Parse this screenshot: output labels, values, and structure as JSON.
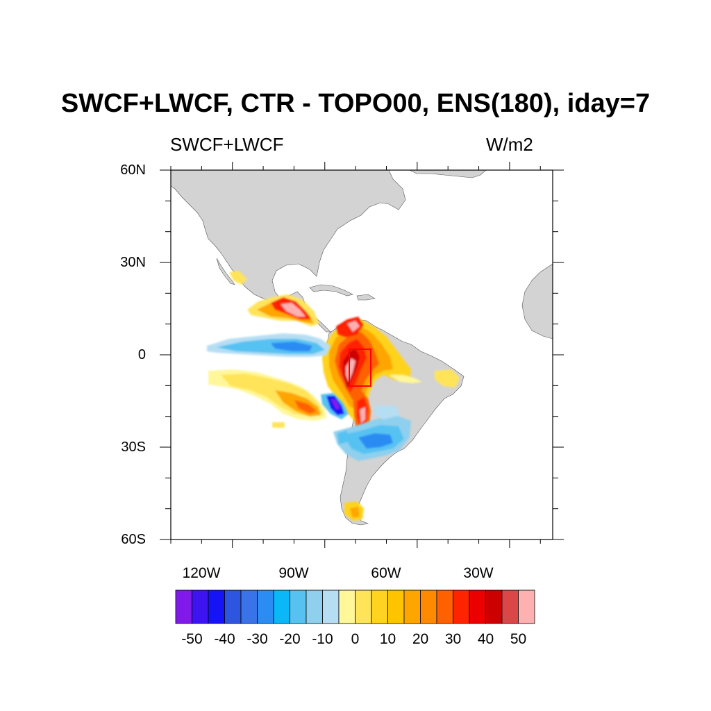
{
  "title": "SWCF+LWCF, CTR - TOPO00, ENS(180), iday=7",
  "left_string": "SWCF+LWCF",
  "right_string": "W/m2",
  "lat_labels": [
    "60N",
    "30N",
    "0",
    "30S",
    "60S"
  ],
  "lon_labels": [
    "120W",
    "90W",
    "60W",
    "30W"
  ],
  "colorbar": {
    "labels": [
      "-50",
      "-40",
      "-30",
      "-20",
      "-10",
      "0",
      "10",
      "20",
      "30",
      "40",
      "50"
    ],
    "colors": [
      "#7f1aeb",
      "#3d14f0",
      "#1414f5",
      "#2d55e0",
      "#3a72ea",
      "#2b8cf3",
      "#0ab7f7",
      "#56c2f2",
      "#8fd0ee",
      "#b6def3",
      "#fff799",
      "#ffe45a",
      "#ffd31f",
      "#ffc400",
      "#ffa500",
      "#ff8a00",
      "#ff6000",
      "#ff2400",
      "#ea0000",
      "#cc0000",
      "#db4646",
      "#ffb1b1"
    ]
  },
  "map": {
    "projection": "cylindrical-equidistant",
    "lon_range": [
      -140,
      -16
    ],
    "lat_range": [
      -60,
      60
    ],
    "land_color": "#d3d3d3",
    "box_region": {
      "lon": [
        -72,
        -65
      ],
      "lat": [
        -10,
        2
      ],
      "color": "#ff0000"
    }
  }
}
